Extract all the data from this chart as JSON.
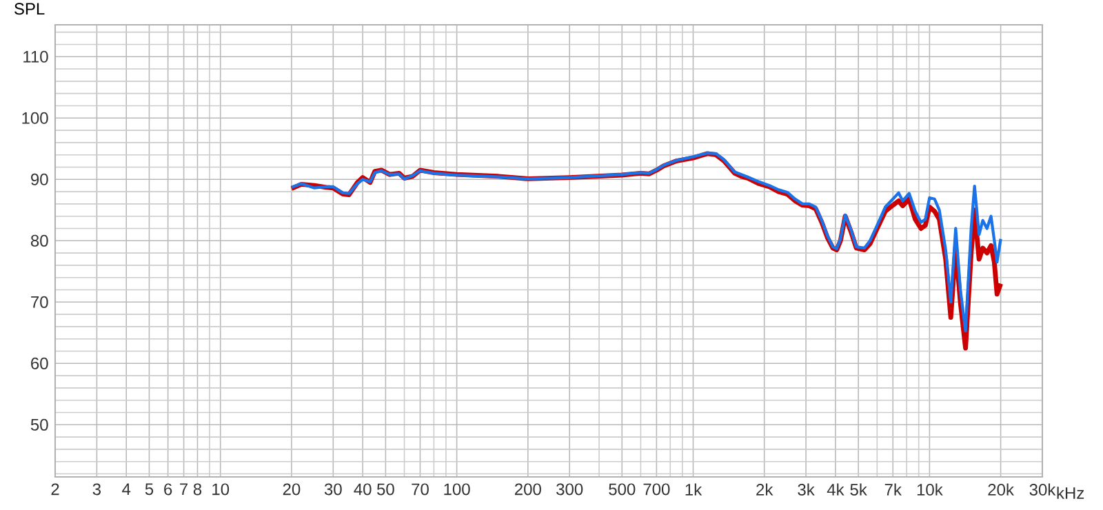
{
  "chart_data": {
    "type": "line",
    "ylabel": "SPL",
    "log": "x",
    "grid": true,
    "line_style": "solid",
    "xlim": [
      2,
      30000
    ],
    "ylim": [
      41.5,
      115.2
    ],
    "xticks": [
      2,
      3,
      4,
      5,
      6,
      7,
      8,
      {
        "value": 9,
        "label": null
      },
      10,
      20,
      30,
      40,
      50,
      {
        "value": 60,
        "label": null
      },
      70,
      {
        "value": 80,
        "label": null
      },
      {
        "value": 90,
        "label": null
      },
      100,
      200,
      300,
      {
        "value": 400,
        "label": null
      },
      500,
      {
        "value": 600,
        "label": null
      },
      700,
      {
        "value": 800,
        "label": null
      },
      {
        "value": 900,
        "label": null
      },
      {
        "value": 1000,
        "label": "1k"
      },
      {
        "value": 2000,
        "label": "2k"
      },
      {
        "value": 3000,
        "label": "3k"
      },
      {
        "value": 4000,
        "label": "4k"
      },
      {
        "value": 5000,
        "label": "5k"
      },
      {
        "value": 6000,
        "label": null
      },
      {
        "value": 7000,
        "label": "7k"
      },
      {
        "value": 8000,
        "label": null
      },
      {
        "value": 9000,
        "label": null
      },
      {
        "value": 10000,
        "label": "10k"
      },
      {
        "value": 20000,
        "label": "20k"
      },
      {
        "value": 30000,
        "label": "30k"
      }
    ],
    "xlabel": "kHz",
    "yticks": [
      {
        "value": 42,
        "label": null
      },
      {
        "value": 44,
        "label": null
      },
      {
        "value": 46,
        "label": null
      },
      {
        "value": 48,
        "label": null
      },
      50,
      {
        "value": 52,
        "label": null
      },
      {
        "value": 54,
        "label": null
      },
      {
        "value": 56,
        "label": null
      },
      {
        "value": 58,
        "label": null
      },
      60,
      {
        "value": 62,
        "label": null
      },
      {
        "value": 64,
        "label": null
      },
      {
        "value": 66,
        "label": null
      },
      {
        "value": 68,
        "label": null
      },
      70,
      {
        "value": 72,
        "label": null
      },
      {
        "value": 74,
        "label": null
      },
      {
        "value": 76,
        "label": null
      },
      {
        "value": 78,
        "label": null
      },
      80,
      {
        "value": 82,
        "label": null
      },
      {
        "value": 84,
        "label": null
      },
      {
        "value": 86,
        "label": null
      },
      {
        "value": 88,
        "label": null
      },
      90,
      {
        "value": 92,
        "label": null
      },
      {
        "value": 94,
        "label": null
      },
      {
        "value": 96,
        "label": null
      },
      {
        "value": 98,
        "label": null
      },
      100,
      {
        "value": 102,
        "label": null
      },
      {
        "value": 104,
        "label": null
      },
      {
        "value": 106,
        "label": null
      },
      {
        "value": 108,
        "label": null
      },
      110,
      {
        "value": 112,
        "label": null
      },
      {
        "value": 114,
        "label": null
      }
    ],
    "x": [
      20,
      22,
      25,
      28,
      30,
      33,
      35,
      38,
      40,
      43,
      45,
      48,
      52,
      57,
      60,
      65,
      70,
      80,
      100,
      150,
      200,
      300,
      500,
      600,
      650,
      700,
      750,
      850,
      1000,
      1150,
      1250,
      1350,
      1500,
      1600,
      1700,
      1900,
      2100,
      2300,
      2500,
      2700,
      2900,
      3100,
      3300,
      3500,
      3700,
      3900,
      4050,
      4200,
      4400,
      4650,
      4900,
      5300,
      5600,
      6000,
      6500,
      7000,
      7400,
      7700,
      8200,
      8700,
      9200,
      9600,
      10000,
      10500,
      11000,
      11700,
      12300,
      12900,
      13500,
      14200,
      15000,
      15500,
      16200,
      16800,
      17500,
      18200,
      18800,
      19300,
      20000
    ],
    "series": [
      {
        "color": "#cc0000",
        "values": [
          88.5,
          89.2,
          89,
          88.7,
          88.6,
          87.6,
          87.5,
          89.5,
          90.3,
          89.5,
          91.3,
          91.5,
          90.8,
          91,
          90.2,
          90.5,
          91.5,
          91.1,
          90.8,
          90.5,
          90.1,
          90.3,
          90.7,
          91,
          90.9,
          91.5,
          92.2,
          93,
          93.5,
          94.2,
          94,
          93,
          91,
          90.5,
          90.2,
          89.3,
          88.8,
          88,
          87.6,
          86.5,
          85.8,
          85.7,
          85.2,
          83,
          80.5,
          78.8,
          78.5,
          80,
          84,
          81.5,
          78.8,
          78.5,
          79.5,
          82,
          84.8,
          85.8,
          86.5,
          85.7,
          86.8,
          83.5,
          82,
          82.5,
          85.5,
          84.8,
          83.5,
          77,
          67.5,
          79,
          70,
          62.5,
          78,
          85,
          77,
          78.8,
          78,
          79.2,
          76.5,
          71.3,
          73
        ]
      },
      {
        "color": "#1a73e8",
        "values": [
          88.7,
          89.3,
          88.6,
          88.8,
          88.8,
          87.8,
          87.7,
          89.3,
          90,
          89.6,
          91.1,
          91.4,
          90.8,
          90.9,
          90.1,
          90.6,
          91.4,
          91,
          90.7,
          90.4,
          90.1,
          90.3,
          90.8,
          91.1,
          91,
          91.6,
          92.3,
          93.1,
          93.7,
          94.3,
          94.2,
          93.2,
          91.2,
          90.8,
          90.4,
          89.6,
          89,
          88.3,
          87.9,
          86.8,
          86,
          86,
          85.5,
          83.3,
          80.8,
          79,
          78.7,
          80.3,
          84.2,
          81.8,
          79,
          78.8,
          80,
          82.5,
          85.5,
          86.8,
          87.8,
          86.5,
          87.7,
          84.8,
          83,
          83.5,
          87,
          86.8,
          85,
          78.5,
          70,
          82,
          72,
          65.3,
          82,
          88.9,
          81,
          83.3,
          82,
          84,
          80,
          76.5,
          80.3
        ]
      }
    ]
  }
}
